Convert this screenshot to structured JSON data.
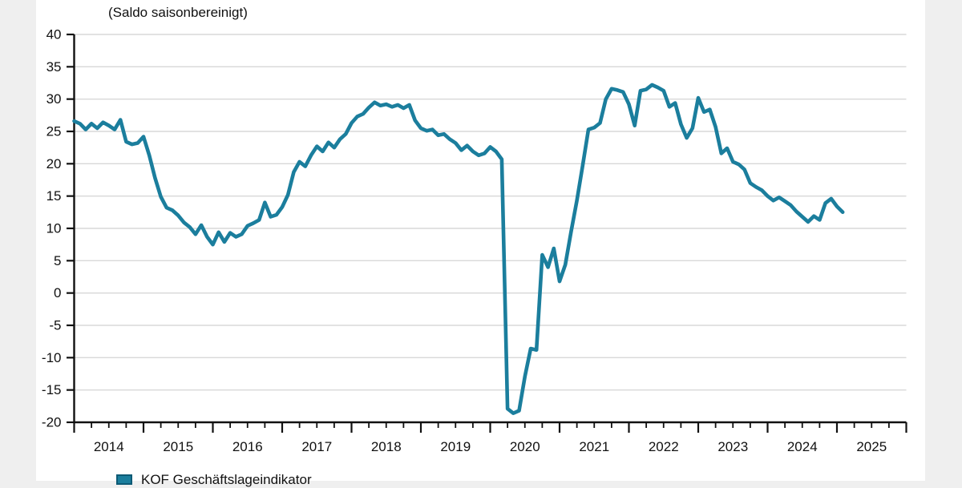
{
  "figure": {
    "title": "(Saldo saisonbereinigt)"
  },
  "colors": {
    "accent_line": "#1b7e9d",
    "legend_swatch_border": "#0d5a75",
    "axis": "#111111",
    "grid": "#d8d8d8",
    "figure_bg": "#ffffff",
    "page_bg": "#efefef"
  },
  "chart_data": {
    "type": "line",
    "title": "(Saldo saisonbereinigt)",
    "legend": [
      "KOF Geschäftslageindikator"
    ],
    "legend_position": "bottom-left",
    "line_color": "#1b7e9d",
    "grid": true,
    "ylim": [
      -20,
      40
    ],
    "ytick_step": 5,
    "x_unit": "month",
    "x_start": "2014-01",
    "x_end": "2025-02",
    "x_axis_end": "2026-01",
    "x_minor_tick_every_months": 3,
    "x_major_tick_every_months": 12,
    "year_labels": [
      "2014",
      "2015",
      "2016",
      "2017",
      "2018",
      "2019",
      "2020",
      "2021",
      "2022",
      "2023",
      "2024",
      "2025"
    ],
    "values_by_year": {
      "2014": [
        26.6,
        26.2,
        25.3,
        26.2,
        25.5,
        26.4,
        25.9,
        25.3,
        26.8,
        23.4,
        23.0,
        23.2
      ],
      "2015": [
        24.2,
        21.3,
        17.8,
        14.9,
        13.2,
        12.8,
        12.0,
        10.9,
        10.2,
        9.1,
        10.5,
        8.7
      ],
      "2016": [
        7.5,
        9.4,
        7.9,
        9.3,
        8.7,
        9.1,
        10.4,
        10.8,
        11.3,
        14.0,
        11.8,
        12.1
      ],
      "2017": [
        13.3,
        15.2,
        18.7,
        20.3,
        19.6,
        21.3,
        22.7,
        21.9,
        23.3,
        22.5,
        23.8,
        24.6
      ],
      "2018": [
        26.3,
        27.3,
        27.7,
        28.7,
        29.5,
        29.0,
        29.2,
        28.8,
        29.1,
        28.6,
        29.1,
        26.7
      ],
      "2019": [
        25.5,
        25.1,
        25.3,
        24.4,
        24.6,
        23.8,
        23.2,
        22.1,
        22.8,
        21.9,
        21.3,
        21.6
      ],
      "2020": [
        22.6,
        21.9,
        20.7,
        -17.9,
        -18.6,
        -18.2,
        -12.9,
        -8.6,
        -8.8,
        5.9,
        4.0,
        6.9
      ],
      "2021": [
        1.8,
        4.4,
        9.5,
        14.3,
        19.7,
        25.3,
        25.6,
        26.3,
        30.0,
        31.6,
        31.4,
        31.1
      ],
      "2022": [
        29.2,
        25.9,
        31.3,
        31.5,
        32.2,
        31.8,
        31.3,
        28.8,
        29.4,
        26.1,
        24.0,
        25.5
      ],
      "2023": [
        30.2,
        28.0,
        28.4,
        25.7,
        21.6,
        22.4,
        20.3,
        19.9,
        19.1,
        17.0,
        16.4,
        15.9
      ],
      "2024": [
        15.0,
        14.3,
        14.8,
        14.2,
        13.6,
        12.6,
        11.8,
        11.0,
        11.9,
        11.3,
        13.9,
        14.6
      ],
      "2025": [
        13.4,
        12.5
      ]
    }
  }
}
